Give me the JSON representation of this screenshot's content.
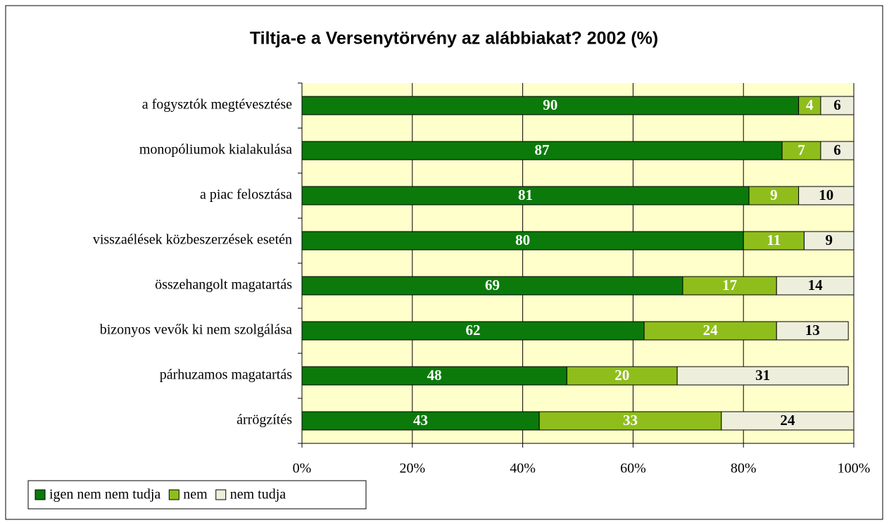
{
  "chart_data": {
    "type": "stacked_bar_horizontal",
    "title": "Tiltja-e a Versenytörvény az alábbiakat? 2002 (%)",
    "categories": [
      "a fogysztók megtévesztése",
      "monopóliumok kialakulása",
      "a piac felosztása",
      "visszaélések közbeszerzések esetén",
      "összehangolt magatartás",
      "bizonyos vevők ki nem szolgálása",
      "párhuzamos magatartás",
      "árrögzítés"
    ],
    "series": [
      {
        "name": "igen nem nem tudja",
        "color": "#0b7a0b",
        "label_color": "#ffffff",
        "values": [
          90,
          87,
          81,
          80,
          69,
          62,
          48,
          43
        ]
      },
      {
        "name": "nem",
        "color": "#8fbe1c",
        "label_color": "#ffffff",
        "values": [
          4,
          7,
          9,
          11,
          17,
          24,
          20,
          33
        ]
      },
      {
        "name": "nem tudja",
        "color": "#eeeedd",
        "label_color": "#000000",
        "values": [
          6,
          6,
          10,
          9,
          14,
          13,
          31,
          24
        ]
      }
    ],
    "xlim": [
      0,
      100
    ],
    "xticks": [
      {
        "value": 0,
        "label": "0%"
      },
      {
        "value": 20,
        "label": "20%"
      },
      {
        "value": 40,
        "label": "40%"
      },
      {
        "value": 60,
        "label": "60%"
      },
      {
        "value": 80,
        "label": "80%"
      },
      {
        "value": 100,
        "label": "100%"
      }
    ],
    "grid": true,
    "legend": "bottom-left",
    "plot_background": "#ffffcc"
  }
}
